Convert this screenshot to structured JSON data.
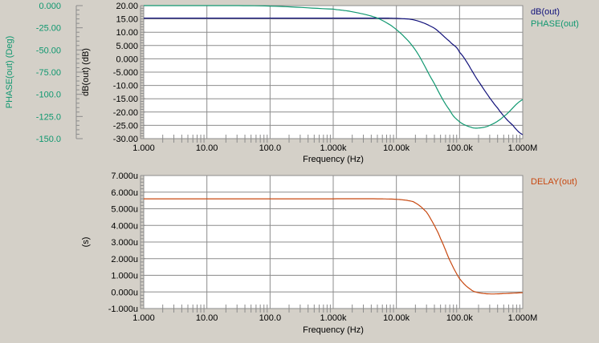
{
  "chart_data": [
    {
      "type": "line",
      "xlabel": "Frequency (Hz)",
      "xscale": "log",
      "xlim": [
        1,
        1000000
      ],
      "x_ticks": [
        {
          "value": 1,
          "label": "1.000"
        },
        {
          "value": 10,
          "label": "10.00"
        },
        {
          "value": 100,
          "label": "100.0"
        },
        {
          "value": 1000,
          "label": "1.000k"
        },
        {
          "value": 10000,
          "label": "10.00k"
        },
        {
          "value": 100000,
          "label": "100.0k"
        },
        {
          "value": 1000000,
          "label": "1.000M"
        }
      ],
      "grid": true,
      "legend": "top-right",
      "y_axes": [
        {
          "label": "dB(out) (dB)",
          "ylim": [
            -30,
            20
          ],
          "ticks": [
            "20.00",
            "15.00",
            "10.00",
            "5.000",
            "0.000",
            "-5.000",
            "-10.00",
            "-15.00",
            "-20.00",
            "-25.00",
            "-30.00"
          ],
          "tick_values": [
            20,
            15,
            10,
            5,
            0,
            -5,
            -10,
            -15,
            -20,
            -25,
            -30
          ],
          "color": "#000000"
        },
        {
          "label": "PHASE(out) (Deg)",
          "ylim": [
            -150,
            0
          ],
          "ticks": [
            "0.000",
            "-25.00",
            "-50.00",
            "-75.00",
            "-100.0",
            "-125.0",
            "-150.0"
          ],
          "tick_values": [
            0,
            -25,
            -50,
            -75,
            -100,
            -125,
            -150
          ],
          "color": "#109870"
        }
      ],
      "series": [
        {
          "name": "dB(out)",
          "color": "#10107a",
          "axis": 0,
          "x": [
            1,
            10,
            100,
            1000,
            5000,
            10000,
            20000,
            40000,
            70000,
            100000,
            200000,
            400000,
            700000,
            1000000
          ],
          "y": [
            15.3,
            15.3,
            15.3,
            15.3,
            15.3,
            15.2,
            14.5,
            11.5,
            6.5,
            2.5,
            -8.5,
            -18.5,
            -25,
            -28.5
          ]
        },
        {
          "name": "PHASE(out)",
          "color": "#109870",
          "axis": 1,
          "x": [
            1,
            10,
            100,
            1000,
            2000,
            5000,
            10000,
            20000,
            40000,
            70000,
            100000,
            150000,
            200000,
            300000,
            500000,
            1000000
          ],
          "y": [
            0,
            0,
            -0.5,
            -4,
            -7,
            -14,
            -27,
            -50,
            -88,
            -118,
            -131,
            -137,
            -138,
            -135,
            -125,
            -106
          ]
        }
      ]
    },
    {
      "type": "line",
      "xlabel": "Frequency (Hz)",
      "xscale": "log",
      "xlim": [
        1,
        1000000
      ],
      "x_ticks": [
        {
          "value": 1,
          "label": "1.000"
        },
        {
          "value": 10,
          "label": "10.00"
        },
        {
          "value": 100,
          "label": "100.0"
        },
        {
          "value": 1000,
          "label": "1.000k"
        },
        {
          "value": 10000,
          "label": "10.00k"
        },
        {
          "value": 100000,
          "label": "100.0k"
        },
        {
          "value": 1000000,
          "label": "1.000M"
        }
      ],
      "grid": true,
      "legend": "top-right",
      "y_axes": [
        {
          "label": "(s)",
          "ylim": [
            -1,
            7
          ],
          "ticks": [
            "7.000u",
            "6.000u",
            "5.000u",
            "4.000u",
            "3.000u",
            "2.000u",
            "1.000u",
            "0.000u",
            "-1.000u"
          ],
          "tick_values": [
            7,
            6,
            5,
            4,
            3,
            2,
            1,
            0,
            -1
          ],
          "color": "#000000"
        }
      ],
      "series": [
        {
          "name": "DELAY(out)",
          "color": "#c84810",
          "axis": 0,
          "x": [
            1,
            10,
            100,
            1000,
            5000,
            10000,
            15000,
            20000,
            30000,
            40000,
            50000,
            70000,
            100000,
            150000,
            200000,
            300000,
            500000,
            1000000
          ],
          "y": [
            5.6,
            5.6,
            5.6,
            5.6,
            5.6,
            5.57,
            5.5,
            5.35,
            4.8,
            4.0,
            3.2,
            1.9,
            0.8,
            0.15,
            -0.05,
            -0.12,
            -0.1,
            -0.05
          ]
        }
      ]
    }
  ]
}
